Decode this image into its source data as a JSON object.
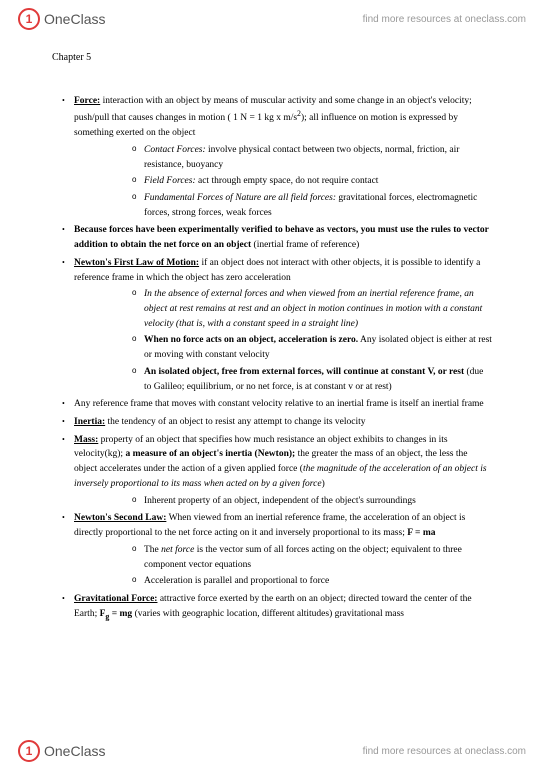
{
  "header": {
    "logo_letter": "1",
    "logo_text_one": "One",
    "logo_text_class": "Class",
    "tagline": "find more resources at oneclass.com"
  },
  "footer": {
    "logo_letter": "1",
    "logo_text_one": "One",
    "logo_text_class": "Class",
    "tagline": "find more resources at oneclass.com"
  },
  "chapter": "Chapter 5",
  "items": [
    {
      "lead": "Force:",
      "body1": " interaction with an object by means of muscular activity and some change in an object's velocity; push/pull that causes changes in motion ( 1 N = 1 kg x m/s",
      "sup": "2",
      "body2": "); all influence on motion is expressed by something exerted on the object",
      "subs": [
        {
          "lead": "Contact Forces:",
          "body": " involve physical contact between two objects, normal, friction, air resistance, buoyancy",
          "leadStyle": "i"
        },
        {
          "lead": "Field Forces:",
          "body": " act through empty space, do not require contact",
          "leadStyle": "i"
        },
        {
          "lead": "Fundamental Forces of Nature are all field forces:",
          "body": " gravitational forces, electromagnetic forces, strong forces, weak forces",
          "leadStyle": "i"
        }
      ]
    },
    {
      "leadBold": "Because forces have been experimentally verified to behave as vectors, you must use the rules to vector addition to obtain the net force on an object ",
      "tail": "(inertial frame of reference)"
    },
    {
      "leadBold": "Newton's First Law of Motion:",
      "body": " if an object does not interact with other objects, it is possible to identify a reference frame in which the object has zero acceleration",
      "subs": [
        {
          "italicFull": "In the absence of external forces and when viewed from an inertial reference frame, an object at rest remains at rest and an object in motion continues in motion with a constant velocity (that is, with a constant speed in a straight line)"
        },
        {
          "bold": "When no force acts on an object, acceleration is zero.",
          "body": " Any isolated object is either at rest or moving with constant velocity"
        },
        {
          "bold": "An isolated object, free from external forces, will continue at constant V, or rest",
          "body": " (due to Galileo; equilibrium, or no net force, is at constant v or at rest)"
        }
      ]
    },
    {
      "body": "Any reference frame that moves with constant velocity relative to an inertial frame is itself an inertial frame"
    },
    {
      "leadBold": "Inertia:",
      "body": " the tendency of an object to resist any attempt to change its velocity"
    },
    {
      "leadBold": "Mass:",
      "body1": " property of an object that specifies how much resistance an object exhibits to changes in its velocity(kg); ",
      "bold2": "a measure of an object's inertia (Newton);",
      "body2": " the greater the mass of an object, the less the object accelerates under the action of a given applied force (",
      "italic": "the magnitude of the acceleration of an object is inversely proportional to its mass when acted on by a given force",
      "body3": ")",
      "subs": [
        {
          "body": "Inherent property of an object, independent of the object's surroundings"
        }
      ]
    },
    {
      "leadBold": "Newton's Second Law:",
      "body1": " When viewed from an inertial reference frame, the acceleration of an object is directly proportional to the net force acting on it and inversely proportional to its mass; ",
      "bold2": "F = ma",
      "subs": [
        {
          "pre": "The ",
          "italic": "net force",
          "body": " is the vector sum of all forces acting on the object; equivalent to three component vector equations"
        },
        {
          "body": "Acceleration is parallel and proportional to force"
        }
      ]
    },
    {
      "leadBold": "Gravitational Force:",
      "body1": " attractive force exerted by the earth on an object; directed toward the center of the Earth; ",
      "bold2": "F",
      "sub": "g",
      "bold3": " = mg",
      "body2": " (varies with geographic location, different altitudes) gravitational mass"
    }
  ]
}
